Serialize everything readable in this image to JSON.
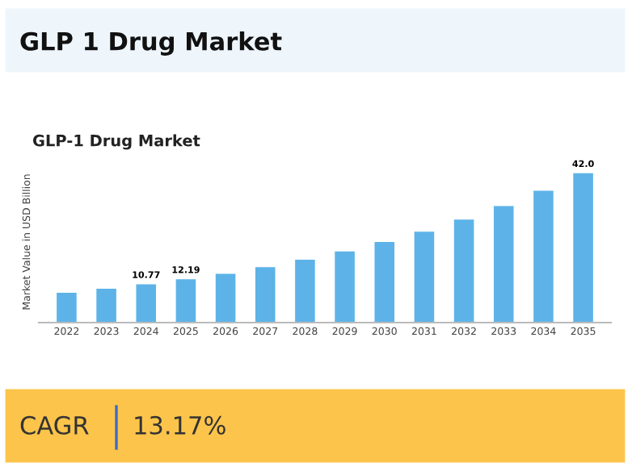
{
  "chart_data": {
    "type": "bar",
    "title": "GLP 1 Drug Market",
    "subtitle": "GLP-1 Drug Market",
    "ylabel": "Market Value in USD Billion",
    "categories": [
      "2022",
      "2023",
      "2024",
      "2025",
      "2026",
      "2027",
      "2028",
      "2029",
      "2030",
      "2031",
      "2032",
      "2033",
      "2034",
      "2035"
    ],
    "values": [
      8.4,
      9.5,
      10.77,
      12.19,
      13.7,
      15.6,
      17.7,
      20.0,
      22.7,
      25.6,
      29.0,
      32.8,
      37.1,
      42.0
    ],
    "value_labels": [
      null,
      null,
      "10.77",
      "12.19",
      null,
      null,
      null,
      null,
      null,
      null,
      null,
      null,
      null,
      "42.0"
    ],
    "color": "#5db3e8",
    "grid": false,
    "legend": false,
    "annotations": [
      "CAGR",
      "13.17%"
    ]
  }
}
